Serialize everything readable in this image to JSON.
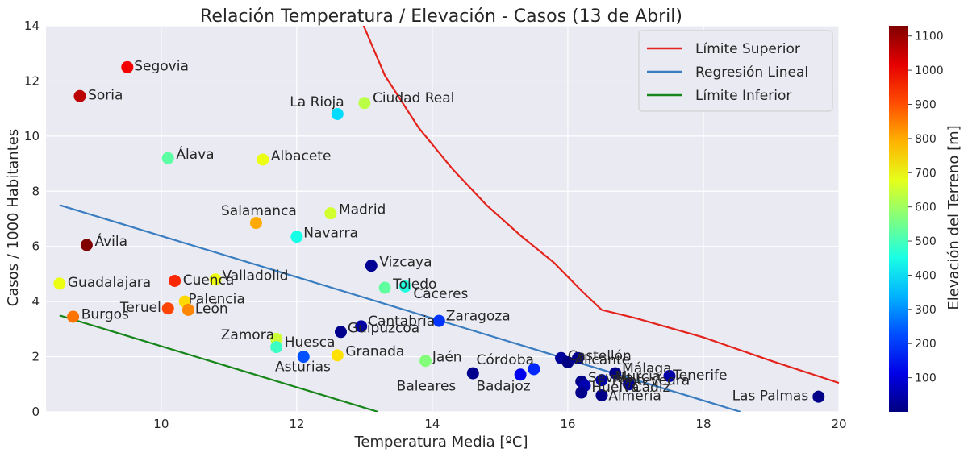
{
  "chart_data": {
    "type": "scatter",
    "title": "Relación Temperatura / Elevación - Casos (13 de Abril)",
    "xlabel": "Temperatura Media [ºC]",
    "ylabel": "Casos / 1000 Habitantes",
    "xlim": [
      8.3,
      20
    ],
    "ylim": [
      0,
      14
    ],
    "xticks": [
      10,
      12,
      14,
      16,
      18,
      20
    ],
    "yticks": [
      0,
      2,
      4,
      6,
      8,
      10,
      12,
      14
    ],
    "grid": true,
    "background": "#eaeaf2",
    "legend_position": "top-right",
    "colorbar": {
      "label": "Elevación del Terreno [m]",
      "min": 0,
      "max": 1130,
      "ticks": [
        100,
        200,
        300,
        400,
        500,
        600,
        700,
        800,
        900,
        1000,
        1100
      ],
      "colormap": "jet"
    },
    "lines": [
      {
        "name": "Límite Superior",
        "color": "#e3231c",
        "points": [
          [
            12.9,
            14.5
          ],
          [
            13.3,
            12.2
          ],
          [
            13.8,
            10.3
          ],
          [
            14.3,
            8.8
          ],
          [
            14.8,
            7.5
          ],
          [
            15.3,
            6.4
          ],
          [
            15.8,
            5.4
          ],
          [
            16.2,
            4.4
          ],
          [
            16.5,
            3.7
          ],
          [
            17.0,
            3.4
          ],
          [
            18.0,
            2.7
          ],
          [
            19.0,
            1.85
          ],
          [
            20.0,
            1.05
          ]
        ]
      },
      {
        "name": "Regresión Lineal",
        "color": "#3a7dc0",
        "points": [
          [
            8.5,
            7.5
          ],
          [
            18.55,
            0
          ]
        ]
      },
      {
        "name": "Límite Inferior",
        "color": "#17861a",
        "points": [
          [
            8.5,
            3.5
          ],
          [
            13.2,
            0
          ]
        ]
      }
    ],
    "points": [
      {
        "name": "Segovia",
        "x": 9.5,
        "y": 12.5,
        "elev": 1000
      },
      {
        "name": "Soria",
        "x": 8.8,
        "y": 11.45,
        "elev": 1065
      },
      {
        "name": "Ávila",
        "x": 8.9,
        "y": 6.05,
        "elev": 1130
      },
      {
        "name": "Guadalajara",
        "x": 8.5,
        "y": 4.65,
        "elev": 685
      },
      {
        "name": "Burgos",
        "x": 8.7,
        "y": 3.45,
        "elev": 860
      },
      {
        "name": "Teruel",
        "x": 10.1,
        "y": 3.75,
        "elev": 915
      },
      {
        "name": "Cuenca",
        "x": 10.2,
        "y": 4.75,
        "elev": 945
      },
      {
        "name": "Palencia",
        "x": 10.35,
        "y": 4.0,
        "elev": 750
      },
      {
        "name": "León",
        "x": 10.4,
        "y": 3.7,
        "elev": 840
      },
      {
        "name": "Valladolid",
        "x": 10.8,
        "y": 4.8,
        "elev": 690
      },
      {
        "name": "Álava",
        "x": 10.1,
        "y": 9.2,
        "elev": 525
      },
      {
        "name": "Albacete",
        "x": 11.5,
        "y": 9.15,
        "elev": 685
      },
      {
        "name": "Salamanca",
        "x": 11.4,
        "y": 6.85,
        "elev": 800
      },
      {
        "name": "Madrid",
        "x": 12.5,
        "y": 7.2,
        "elev": 655
      },
      {
        "name": "Navarra",
        "x": 12.0,
        "y": 6.35,
        "elev": 450
      },
      {
        "name": "La Rioja",
        "x": 12.6,
        "y": 10.8,
        "elev": 385
      },
      {
        "name": "Ciudad Real",
        "x": 13.0,
        "y": 11.2,
        "elev": 630
      },
      {
        "name": "Vizcaya",
        "x": 13.1,
        "y": 5.3,
        "elev": 20
      },
      {
        "name": "Toledo",
        "x": 13.3,
        "y": 4.5,
        "elev": 530
      },
      {
        "name": "Cáceres",
        "x": 13.6,
        "y": 4.55,
        "elev": 460
      },
      {
        "name": "Zamora",
        "x": 11.7,
        "y": 2.65,
        "elev": 650
      },
      {
        "name": "Huesca",
        "x": 11.7,
        "y": 2.35,
        "elev": 490
      },
      {
        "name": "Asturias",
        "x": 12.1,
        "y": 2.0,
        "elev": 230
      },
      {
        "name": "Granada",
        "x": 12.6,
        "y": 2.05,
        "elev": 740
      },
      {
        "name": "Cantabria",
        "x": 12.65,
        "y": 2.9,
        "elev": 15
      },
      {
        "name": "Guipúzcoa",
        "x": 12.95,
        "y": 3.1,
        "elev": 40
      },
      {
        "name": "Zaragoza",
        "x": 14.1,
        "y": 3.3,
        "elev": 200
      },
      {
        "name": "Jaén",
        "x": 13.9,
        "y": 1.85,
        "elev": 570
      },
      {
        "name": "Baleares",
        "x": 14.6,
        "y": 1.4,
        "elev": 15
      },
      {
        "name": "Córdoba",
        "x": 15.3,
        "y": 1.35,
        "elev": 120
      },
      {
        "name": "Badajoz",
        "x": 15.5,
        "y": 1.55,
        "elev": 185
      },
      {
        "name": "Castellón",
        "x": 15.9,
        "y": 1.95,
        "elev": 30
      },
      {
        "name": "Alicante",
        "x": 16.0,
        "y": 1.8,
        "elev": 5
      },
      {
        "name": "Valencia",
        "x": 16.15,
        "y": 1.95,
        "elev": 15
      },
      {
        "name": "Sevilla",
        "x": 16.2,
        "y": 1.1,
        "elev": 10
      },
      {
        "name": "Huelva",
        "x": 16.25,
        "y": 0.95,
        "elev": 55
      },
      {
        "name": "Almería",
        "x": 16.2,
        "y": 0.7,
        "elev": 15
      },
      {
        "name": "Cádiz",
        "x": 16.5,
        "y": 0.6,
        "elev": 10
      },
      {
        "name": "Murcia",
        "x": 16.5,
        "y": 1.15,
        "elev": 45
      },
      {
        "name": "Málaga",
        "x": 16.7,
        "y": 1.4,
        "elev": 10
      },
      {
        "name": "Pontevedra",
        "x": 16.9,
        "y": 1.0,
        "elev": 25
      },
      {
        "name": "Tenerife",
        "x": 17.5,
        "y": 1.3,
        "elev": 50
      },
      {
        "name": "Las Palmas",
        "x": 19.7,
        "y": 0.55,
        "elev": 10
      }
    ],
    "labels": [
      {
        "text": "Segovia",
        "x": 9.6,
        "y": 12.55,
        "anchor": "start"
      },
      {
        "text": "Soria",
        "x": 8.92,
        "y": 11.5,
        "anchor": "start"
      },
      {
        "text": "Ávila",
        "x": 9.02,
        "y": 6.2,
        "anchor": "start"
      },
      {
        "text": "Guadalajara",
        "x": 8.62,
        "y": 4.7,
        "anchor": "start"
      },
      {
        "text": "Burgos",
        "x": 8.82,
        "y": 3.55,
        "anchor": "start"
      },
      {
        "text": "Teruel",
        "x": 10.0,
        "y": 3.8,
        "anchor": "end"
      },
      {
        "text": "Cuenca",
        "x": 10.32,
        "y": 4.8,
        "anchor": "start"
      },
      {
        "text": "Palencia",
        "x": 10.4,
        "y": 4.1,
        "anchor": "start"
      },
      {
        "text": "León",
        "x": 10.5,
        "y": 3.75,
        "anchor": "start"
      },
      {
        "text": "Valladolid",
        "x": 10.9,
        "y": 4.95,
        "anchor": "start"
      },
      {
        "text": "Álava",
        "x": 10.22,
        "y": 9.35,
        "anchor": "start"
      },
      {
        "text": "Albacete",
        "x": 11.62,
        "y": 9.3,
        "anchor": "start"
      },
      {
        "text": "Salamanca",
        "x": 12.0,
        "y": 7.3,
        "anchor": "end"
      },
      {
        "text": "Madrid",
        "x": 12.62,
        "y": 7.35,
        "anchor": "start"
      },
      {
        "text": "Navarra",
        "x": 12.1,
        "y": 6.5,
        "anchor": "start"
      },
      {
        "text": "La Rioja",
        "x": 12.7,
        "y": 11.25,
        "anchor": "end"
      },
      {
        "text": "Ciudad Real",
        "x": 13.12,
        "y": 11.4,
        "anchor": "start"
      },
      {
        "text": "Vizcaya",
        "x": 13.22,
        "y": 5.45,
        "anchor": "start"
      },
      {
        "text": "Toledo",
        "x": 13.42,
        "y": 4.65,
        "anchor": "start"
      },
      {
        "text": "Cáceres",
        "x": 13.72,
        "y": 4.3,
        "anchor": "start"
      },
      {
        "text": "Zamora",
        "x": 11.67,
        "y": 2.8,
        "anchor": "end"
      },
      {
        "text": "Huesca",
        "x": 11.82,
        "y": 2.55,
        "anchor": "start"
      },
      {
        "text": "Asturias",
        "x": 12.5,
        "y": 1.65,
        "anchor": "end"
      },
      {
        "text": "Granada",
        "x": 12.72,
        "y": 2.2,
        "anchor": "start"
      },
      {
        "text": "Guipúzcoa",
        "x": 12.75,
        "y": 3.05,
        "anchor": "start"
      },
      {
        "text": "Cantabria",
        "x": 13.05,
        "y": 3.3,
        "anchor": "start"
      },
      {
        "text": "Zaragoza",
        "x": 14.2,
        "y": 3.5,
        "anchor": "start"
      },
      {
        "text": "Jaén",
        "x": 14.0,
        "y": 2.0,
        "anchor": "start"
      },
      {
        "text": "Baleares",
        "x": 14.35,
        "y": 0.95,
        "anchor": "end"
      },
      {
        "text": "Córdoba",
        "x": 15.5,
        "y": 1.9,
        "anchor": "end"
      },
      {
        "text": "Badajoz",
        "x": 15.45,
        "y": 0.95,
        "anchor": "end"
      },
      {
        "text": "Castellón",
        "x": 16.0,
        "y": 2.05,
        "anchor": "start"
      },
      {
        "text": "Alicante",
        "x": 16.1,
        "y": 1.9,
        "anchor": "start"
      },
      {
        "text": "Sevilla",
        "x": 16.3,
        "y": 1.25,
        "anchor": "start"
      },
      {
        "text": "Huelva",
        "x": 16.35,
        "y": 0.9,
        "anchor": "start"
      },
      {
        "text": "Almería",
        "x": 16.6,
        "y": 0.6,
        "anchor": "start"
      },
      {
        "text": "Cádiz",
        "x": 16.95,
        "y": 0.9,
        "anchor": "start"
      },
      {
        "text": "Murcia",
        "x": 16.7,
        "y": 1.3,
        "anchor": "start"
      },
      {
        "text": "Málaga",
        "x": 16.8,
        "y": 1.6,
        "anchor": "start"
      },
      {
        "text": "Pontevedra",
        "x": 16.65,
        "y": 1.15,
        "anchor": "start"
      },
      {
        "text": "Tenerife",
        "x": 17.55,
        "y": 1.35,
        "anchor": "start"
      },
      {
        "text": "Las Palmas",
        "x": 19.55,
        "y": 0.6,
        "anchor": "end"
      }
    ]
  }
}
